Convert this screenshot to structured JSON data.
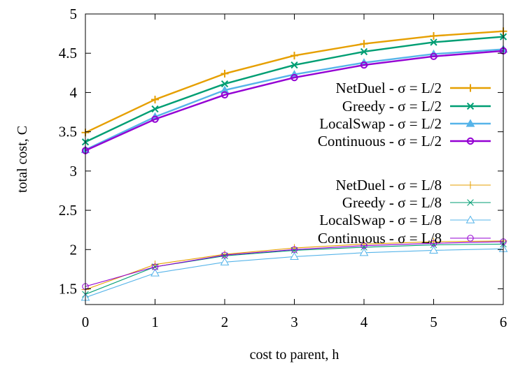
{
  "chart_data": {
    "type": "line",
    "title": "",
    "xlabel": "cost to parent, h",
    "ylabel": "total cost, C",
    "xlim": [
      0,
      6
    ],
    "ylim": [
      1.3,
      5
    ],
    "x": [
      0,
      1,
      2,
      3,
      4,
      5,
      6
    ],
    "xticks": [
      "0",
      "1",
      "2",
      "3",
      "4",
      "5",
      "6"
    ],
    "yticks": [
      "1.5",
      "2",
      "2.5",
      "3",
      "3.5",
      "4",
      "4.5",
      "5"
    ],
    "ytick_values": [
      1.5,
      2,
      2.5,
      3,
      3.5,
      4,
      4.5,
      5
    ],
    "grid": false,
    "legend_position": "right",
    "series": [
      {
        "name": "NetDuel - σ = L/2",
        "color": "#e69f00",
        "marker": "plus",
        "weight": "thick",
        "values": [
          3.49,
          3.91,
          4.24,
          4.47,
          4.62,
          4.72,
          4.78
        ]
      },
      {
        "name": "Greedy - σ = L/2",
        "color": "#009e73",
        "marker": "cross",
        "weight": "thick",
        "values": [
          3.37,
          3.79,
          4.11,
          4.35,
          4.52,
          4.64,
          4.71
        ]
      },
      {
        "name": "LocalSwap - σ = L/2",
        "color": "#56b4e9",
        "marker": "triangle-filled",
        "weight": "thick",
        "values": [
          3.27,
          3.69,
          4.03,
          4.23,
          4.38,
          4.49,
          4.55
        ]
      },
      {
        "name": "Continuous - σ = L/2",
        "color": "#9400d3",
        "marker": "circle",
        "weight": "thick",
        "values": [
          3.26,
          3.66,
          3.97,
          4.19,
          4.35,
          4.46,
          4.53
        ]
      },
      {
        "name": "NetDuel - σ = L/8",
        "color": "#e69f00",
        "marker": "plus",
        "weight": "thin",
        "values": [
          1.49,
          1.81,
          1.94,
          2.02,
          2.07,
          2.1,
          2.11
        ]
      },
      {
        "name": "Greedy - σ = L/8",
        "color": "#009e73",
        "marker": "cross",
        "weight": "thin",
        "values": [
          1.43,
          1.78,
          1.92,
          1.99,
          2.03,
          2.06,
          2.07
        ]
      },
      {
        "name": "LocalSwap - σ = L/8",
        "color": "#56b4e9",
        "marker": "triangle-open",
        "weight": "thin",
        "values": [
          1.39,
          1.7,
          1.84,
          1.91,
          1.96,
          1.99,
          2.01
        ]
      },
      {
        "name": "Continuous - σ = L/8",
        "color": "#9400d3",
        "marker": "circle",
        "weight": "thin",
        "values": [
          1.53,
          1.78,
          1.93,
          2.0,
          2.05,
          2.08,
          2.1
        ]
      }
    ]
  }
}
